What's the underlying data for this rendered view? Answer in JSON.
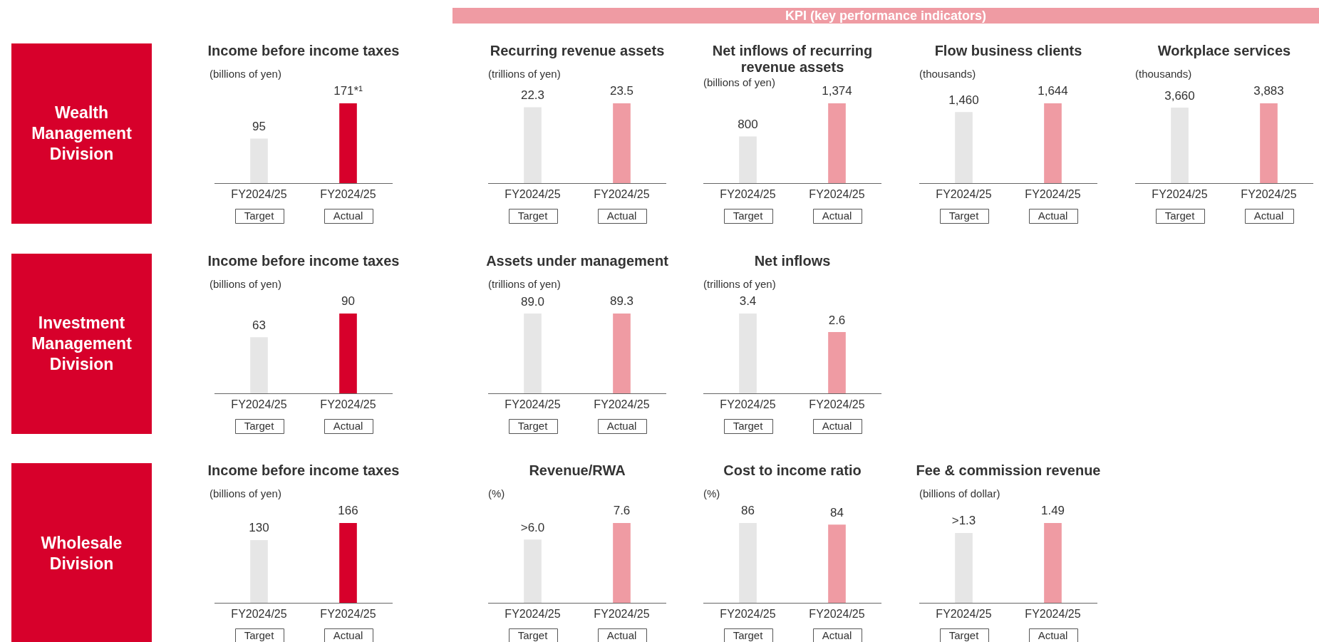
{
  "chart_data": [
    {
      "type": "other",
      "title": "KPI (key performance indicators)"
    },
    {
      "type": "other",
      "title": "Wealth Management Division"
    },
    {
      "type": "bar",
      "title": "Income before income taxes",
      "subtitle": "(billions of yen)",
      "categories": [
        "FY2024/25\nTarget",
        "FY2024/25\nActual"
      ],
      "values": [
        95,
        171
      ],
      "colors": [
        "#e6e6e6",
        "#d7002b"
      ],
      "value_labels": [
        "95",
        "171*¹"
      ]
    },
    {
      "type": "bar",
      "title": "Recurring revenue assets",
      "subtitle": "(trillions of yen)",
      "categories": [
        "FY2024/25\nTarget",
        "FY2024/25\nActual"
      ],
      "values": [
        22.3,
        23.5
      ],
      "colors": [
        "#e6e6e6",
        "#ef9ba3"
      ],
      "value_labels": [
        "22.3",
        "23.5"
      ]
    },
    {
      "type": "bar",
      "title": "Net inflows of recurring revenue assets",
      "subtitle": "(billions of yen)",
      "categories": [
        "FY2024/25\nTarget",
        "FY2024/25\nActual"
      ],
      "values": [
        800,
        1374
      ],
      "colors": [
        "#e6e6e6",
        "#ef9ba3"
      ],
      "value_labels": [
        "800",
        "1,374"
      ]
    },
    {
      "type": "bar",
      "title": "Flow business clients",
      "subtitle": "(thousands)",
      "categories": [
        "FY2024/25\nTarget",
        "FY2024/25\nActual"
      ],
      "values": [
        1460,
        1644
      ],
      "colors": [
        "#e6e6e6",
        "#ef9ba3"
      ],
      "value_labels": [
        "1,460",
        "1,644"
      ]
    },
    {
      "type": "bar",
      "title": "Workplace services",
      "subtitle": "(thousands)",
      "categories": [
        "FY2024/25\nTarget",
        "FY2024/25\nActual"
      ],
      "values": [
        3660,
        3883
      ],
      "colors": [
        "#e6e6e6",
        "#ef9ba3"
      ],
      "value_labels": [
        "3,660",
        "3,883"
      ]
    },
    {
      "type": "other",
      "title": "Investment Management Division"
    },
    {
      "type": "bar",
      "title": "Income before income taxes",
      "subtitle": "(billions of yen)",
      "categories": [
        "FY2024/25\nTarget",
        "FY2024/25\nActual"
      ],
      "values": [
        63,
        90
      ],
      "colors": [
        "#e6e6e6",
        "#d7002b"
      ],
      "value_labels": [
        "63",
        "90"
      ]
    },
    {
      "type": "bar",
      "title": "Assets under management",
      "subtitle": "(trillions of yen)",
      "categories": [
        "FY2024/25\nTarget",
        "FY2024/25\nActual"
      ],
      "values": [
        89.0,
        89.3
      ],
      "colors": [
        "#e6e6e6",
        "#ef9ba3"
      ],
      "value_labels": [
        "89.0",
        "89.3"
      ]
    },
    {
      "type": "bar",
      "title": "Net inflows",
      "subtitle": "(trillions of yen)",
      "categories": [
        "FY2024/25\nTarget",
        "FY2024/25\nActual"
      ],
      "values": [
        3.4,
        2.6
      ],
      "colors": [
        "#e6e6e6",
        "#ef9ba3"
      ],
      "value_labels": [
        "3.4",
        "2.6"
      ]
    },
    {
      "type": "other",
      "title": "Wholesale Division"
    },
    {
      "type": "bar",
      "title": "Income before income taxes",
      "subtitle": "(billions of yen)",
      "categories": [
        "FY2024/25\nTarget",
        "FY2024/25\nActual"
      ],
      "values": [
        130,
        166
      ],
      "colors": [
        "#e6e6e6",
        "#d7002b"
      ],
      "value_labels": [
        "130",
        "166"
      ]
    },
    {
      "type": "bar",
      "title": "Revenue/RWA",
      "subtitle": "(%)",
      "categories": [
        "FY2024/25\nTarget",
        "FY2024/25\nActual"
      ],
      "values": [
        6.0,
        7.6
      ],
      "colors": [
        "#e6e6e6",
        "#ef9ba3"
      ],
      "value_labels": [
        ">6.0",
        "7.6"
      ]
    },
    {
      "type": "bar",
      "title": "Cost to income ratio",
      "subtitle": "(%)",
      "categories": [
        "FY2024/25\nTarget",
        "FY2024/25\nActual"
      ],
      "values": [
        86,
        84
      ],
      "colors": [
        "#e6e6e6",
        "#ef9ba3"
      ],
      "value_labels": [
        "86",
        "84"
      ]
    },
    {
      "type": "bar",
      "title": "Fee & commission revenue",
      "subtitle": "(billions of dollar)",
      "categories": [
        "FY2024/25\nTarget",
        "FY2024/25\nActual"
      ],
      "values": [
        1.3,
        1.49
      ],
      "colors": [
        "#e6e6e6",
        "#ef9ba3"
      ],
      "value_labels": [
        ">1.3",
        "1.49"
      ]
    }
  ]
}
